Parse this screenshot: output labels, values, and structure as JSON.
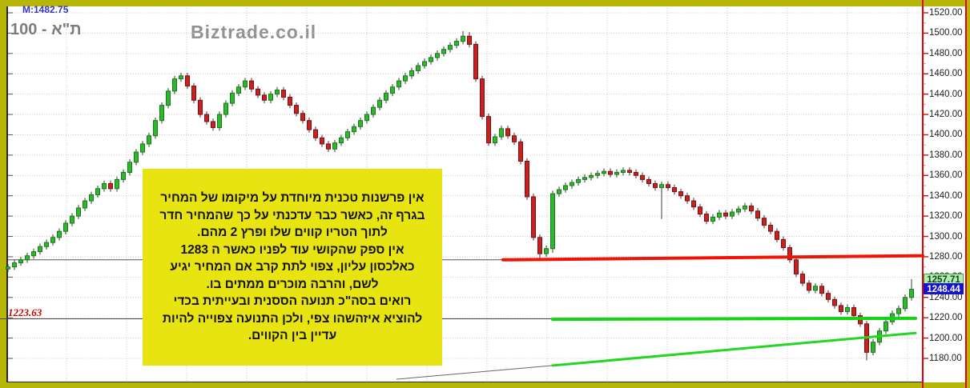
{
  "header": {
    "indicator_label": "M:1482.75",
    "title": "ת\"א - 100",
    "watermark": "Biztrade.co.il"
  },
  "left_price_label": {
    "text": "1223.63",
    "color": "#cc0000"
  },
  "annotation_box": {
    "bg_color": "#e7e411",
    "lines": [
      "אין פרשנות טכנית מיוחדת על מיקומו של המחיר",
      "בגרף זה, כאשר כבר עדכנתי על כך שהמחיר חדר",
      "לתוך הטריו קווים שלו ופרץ 2 מהם.",
      "אין ספק שהקושי עוד לפניו כאשר ה 1283",
      "כאלכסון עליון, צפוי לתת קרב אם המחיר יגיע",
      "לשם, והרבה מוכרים ממתים בו.",
      "רואים בסה\"כ תנועה הססנית ובעייתית בכדי",
      "להוציא איזהשהו צפי, ולכן התנועה צפוייה להיות",
      "עדיין בין הקווים."
    ]
  },
  "price_markers": [
    {
      "label": "1257.71",
      "price": 1257.71,
      "bg": "#aeeeae",
      "fg": "#173a17",
      "border": "#46a046"
    },
    {
      "label": "1248.44",
      "price": 1248.44,
      "bg": "#1414cf",
      "fg": "#ffffff",
      "border": "#1414cf"
    }
  ],
  "chart_data": {
    "type": "candlestick",
    "title": "ת\"א - 100",
    "grid": true,
    "x_axis_labels": "none",
    "price_axis": {
      "min": 1180,
      "max": 1520,
      "tick_step": 20,
      "tick_format": "2dp",
      "side": "right"
    },
    "ylim": [
      1156,
      1525
    ],
    "open_first": 1268,
    "closes": [
      1270,
      1274,
      1277,
      1281,
      1285,
      1290,
      1294,
      1299,
      1305,
      1313,
      1320,
      1328,
      1335,
      1341,
      1347,
      1352,
      1347,
      1356,
      1363,
      1373,
      1383,
      1391,
      1399,
      1414,
      1429,
      1443,
      1455,
      1458,
      1448,
      1434,
      1420,
      1413,
      1407,
      1420,
      1431,
      1441,
      1447,
      1453,
      1445,
      1439,
      1434,
      1440,
      1444,
      1437,
      1429,
      1421,
      1414,
      1405,
      1397,
      1391,
      1386,
      1392,
      1397,
      1403,
      1408,
      1414,
      1420,
      1427,
      1434,
      1441,
      1447,
      1453,
      1458,
      1463,
      1468,
      1472,
      1476,
      1480,
      1484,
      1488,
      1492,
      1497,
      1489,
      1455,
      1418,
      1392,
      1398,
      1406,
      1399,
      1393,
      1374,
      1339,
      1299,
      1283,
      1288,
      1342,
      1346,
      1350,
      1353,
      1356,
      1358,
      1360,
      1362,
      1364,
      1361,
      1363,
      1365,
      1363,
      1360,
      1356,
      1352,
      1348,
      1351,
      1348,
      1344,
      1340,
      1335,
      1329,
      1322,
      1315,
      1319,
      1323,
      1320,
      1324,
      1327,
      1330,
      1325,
      1318,
      1311,
      1305,
      1297,
      1289,
      1277,
      1263,
      1254,
      1247,
      1251,
      1244,
      1238,
      1232,
      1226,
      1230,
      1222,
      1214,
      1186,
      1196,
      1207,
      1216,
      1224,
      1229,
      1240,
      1248
    ],
    "wick_overrides": {
      "71": {
        "high": 1502
      },
      "72": {
        "high": 1501
      },
      "83": {
        "low": 1276
      },
      "85": {
        "low": 1284
      },
      "102": {
        "low": 1317
      },
      "134": {
        "low": 1178
      },
      "141": {
        "high": 1258
      }
    },
    "overlay_lines": [
      {
        "name": "upper-level-line-black",
        "color": "#555555",
        "width": 1,
        "points": [
          [
            10,
            1277
          ],
          [
            628,
            1277
          ]
        ]
      },
      {
        "name": "resistance-line-red",
        "color": "#ee1505",
        "width": 4,
        "points": [
          [
            628,
            1277
          ],
          [
            1152,
            1281
          ]
        ]
      },
      {
        "name": "lower-level-line-black",
        "color": "#444444",
        "width": 1,
        "points": [
          [
            0,
            1219
          ],
          [
            1143,
            1219
          ]
        ]
      },
      {
        "name": "support-line-green",
        "color": "#12d412",
        "width": 4,
        "points": [
          [
            690,
            1218.5
          ],
          [
            1143,
            1219.5
          ]
        ]
      },
      {
        "name": "trendline-tail-gray",
        "color": "#666666",
        "width": 1,
        "points": [
          [
            495,
            1159.5
          ],
          [
            690,
            1173
          ]
        ]
      },
      {
        "name": "rising-trendline-green",
        "color": "#22d622",
        "width": 3,
        "points": [
          [
            690,
            1173
          ],
          [
            1143,
            1205
          ]
        ]
      }
    ],
    "colors": {
      "up_fill": "#2eb82e",
      "up_border": "#157a15",
      "down_fill": "#c92121",
      "down_border": "#7c0e0e",
      "wick": "#3a3a3a",
      "grid_h": "#d9c0c0",
      "grid_v": "#c9c9c9",
      "axis_tick": "#cc1111",
      "axis_minor_tick": "#dd9999"
    }
  }
}
